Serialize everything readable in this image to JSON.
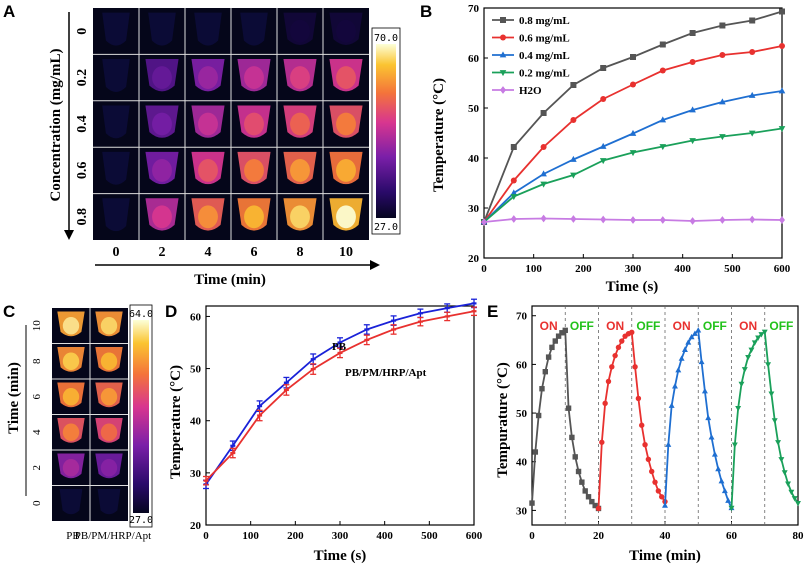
{
  "panels": {
    "A": {
      "letter": "A",
      "ylabel": "Concentration (mg/mL)",
      "xlabel": "Time (min)",
      "row_labels": [
        "0",
        "0.2",
        "0.4",
        "0.6",
        "0.8"
      ],
      "col_labels": [
        "0",
        "2",
        "4",
        "6",
        "8",
        "10"
      ],
      "colorbar_max": "70.0",
      "colorbar_min": "27.0",
      "intensity": [
        [
          0.02,
          0.04,
          0.05,
          0.05,
          0.06,
          0.06
        ],
        [
          0.02,
          0.3,
          0.42,
          0.52,
          0.58,
          0.64
        ],
        [
          0.02,
          0.34,
          0.52,
          0.62,
          0.68,
          0.74
        ],
        [
          0.02,
          0.4,
          0.64,
          0.74,
          0.8,
          0.84
        ],
        [
          0.02,
          0.55,
          0.78,
          0.86,
          0.92,
          1.0
        ]
      ]
    },
    "B": {
      "letter": "B",
      "chart_data": {
        "type": "line",
        "xlabel": "Time (s)",
        "ylabel": "Temperature (°C)",
        "xlim": [
          0,
          600
        ],
        "ylim": [
          20,
          70
        ],
        "xticks": [
          0,
          100,
          200,
          300,
          400,
          500,
          600
        ],
        "yticks": [
          20,
          30,
          40,
          50,
          60,
          70
        ],
        "x": [
          0,
          60,
          120,
          180,
          240,
          300,
          360,
          420,
          480,
          540,
          600
        ],
        "series": [
          {
            "name": "0.8 mg/mL",
            "color": "#555555",
            "marker": "square",
            "values": [
              27.2,
              42.2,
              49.0,
              54.6,
              58.0,
              60.2,
              62.7,
              65.0,
              66.5,
              67.5,
              69.3
            ]
          },
          {
            "name": "0.6 mg/mL",
            "color": "#e8312f",
            "marker": "circle",
            "values": [
              27.2,
              35.5,
              42.2,
              47.6,
              51.8,
              54.7,
              57.5,
              59.2,
              60.6,
              61.2,
              62.4
            ]
          },
          {
            "name": "0.4 mg/mL",
            "color": "#1f6fd1",
            "marker": "triangle-up",
            "values": [
              27.2,
              33.0,
              36.8,
              39.7,
              42.3,
              44.9,
              47.6,
              49.6,
              51.2,
              52.5,
              53.4
            ]
          },
          {
            "name": "0.2 mg/mL",
            "color": "#1aa05a",
            "marker": "triangle-down",
            "values": [
              27.2,
              32.3,
              34.8,
              36.6,
              39.5,
              41.1,
              42.3,
              43.5,
              44.3,
              45.0,
              45.9
            ]
          },
          {
            "name": "H2O",
            "color": "#c77be3",
            "marker": "diamond",
            "values": [
              27.2,
              27.8,
              27.9,
              27.8,
              27.7,
              27.6,
              27.6,
              27.4,
              27.6,
              27.7,
              27.6
            ]
          }
        ]
      }
    },
    "C": {
      "letter": "C",
      "ylabel": "Time (min)",
      "row_labels": [
        "10",
        "8",
        "6",
        "4",
        "2",
        "0"
      ],
      "col_labels": [
        "PB",
        "PB/PM/HRP/Apt"
      ],
      "colorbar_max": "64.0",
      "colorbar_min": "27.0",
      "intensity": [
        [
          0.95,
          0.92
        ],
        [
          0.9,
          0.86
        ],
        [
          0.85,
          0.8
        ],
        [
          0.75,
          0.7
        ],
        [
          0.45,
          0.38
        ],
        [
          0.02,
          0.02
        ]
      ]
    },
    "D": {
      "letter": "D",
      "chart_data": {
        "type": "line",
        "xlabel": "Time (s)",
        "ylabel": "Temperature (°C)",
        "xlim": [
          0,
          600
        ],
        "ylim": [
          20,
          62
        ],
        "xticks": [
          0,
          100,
          200,
          300,
          400,
          500,
          600
        ],
        "yticks": [
          20,
          30,
          40,
          50,
          60
        ],
        "x": [
          0,
          60,
          120,
          180,
          240,
          300,
          360,
          420,
          480,
          540,
          600
        ],
        "series": [
          {
            "name": "PB",
            "color": "#1a22d8",
            "values": [
              27.8,
              35.2,
              42.8,
              47.3,
              51.8,
              55.0,
              57.5,
              59.2,
              60.6,
              61.6,
              62.5
            ],
            "errors": [
              0.8,
              0.9,
              1.0,
              1.0,
              1.0,
              0.9,
              0.9,
              0.9,
              0.8,
              0.8,
              0.8
            ]
          },
          {
            "name": "PB/PM/HRP/Apt",
            "color": "#e8312f",
            "values": [
              28.5,
              33.8,
              41.0,
              45.9,
              49.9,
              53.0,
              55.5,
              57.5,
              59.0,
              60.0,
              61.0
            ],
            "errors": [
              0.8,
              0.9,
              1.0,
              1.0,
              1.0,
              0.9,
              0.9,
              0.9,
              0.8,
              0.8,
              0.8
            ]
          }
        ]
      }
    },
    "E": {
      "letter": "E",
      "on_label": "ON",
      "off_label": "OFF",
      "chart_data": {
        "type": "line",
        "xlabel": "Time (min)",
        "ylabel": "Tempurature (°C)",
        "xlim": [
          0,
          80
        ],
        "ylim": [
          27,
          72
        ],
        "xticks": [
          0,
          20,
          40,
          60,
          80
        ],
        "yticks": [
          30,
          40,
          50,
          60,
          70
        ],
        "dividers": [
          10,
          20,
          30,
          40,
          50,
          60,
          70
        ],
        "cycles": [
          {
            "color": "#555555",
            "marker": "square",
            "start": 0,
            "heat": [
              31.5,
              42.0,
              49.5,
              55.0,
              58.5,
              61.5,
              63.5,
              64.8,
              65.8,
              66.5,
              67.0
            ],
            "cool": [
              67.0,
              51.0,
              45.0,
              41.0,
              38.0,
              35.8,
              34.0,
              32.8,
              31.8,
              31.0,
              30.4
            ]
          },
          {
            "color": "#e8312f",
            "marker": "circle",
            "start": 20,
            "heat": [
              30.4,
              44.0,
              52.0,
              56.5,
              59.5,
              61.8,
              63.5,
              64.8,
              65.8,
              66.3,
              66.6
            ],
            "cool": [
              66.6,
              59.5,
              53.0,
              47.5,
              43.5,
              40.5,
              38.0,
              35.8,
              34.0,
              32.8,
              31.8
            ]
          },
          {
            "color": "#1f6fd1",
            "marker": "triangle-up",
            "start": 40,
            "heat": [
              31.0,
              43.5,
              51.5,
              55.5,
              58.8,
              61.2,
              63.0,
              64.5,
              65.6,
              66.3,
              67.0
            ],
            "cool": [
              67.0,
              60.5,
              54.5,
              49.0,
              45.0,
              41.5,
              38.5,
              36.0,
              34.0,
              32.0,
              30.5
            ]
          },
          {
            "color": "#1aa05a",
            "marker": "triangle-down",
            "start": 60,
            "heat": [
              30.5,
              43.5,
              51.0,
              56.0,
              59.0,
              61.5,
              63.0,
              64.5,
              65.5,
              66.2,
              66.7
            ],
            "cool": [
              66.7,
              60.0,
              54.0,
              48.5,
              44.0,
              40.5,
              37.8,
              35.5,
              33.8,
              32.5,
              31.5
            ]
          }
        ]
      }
    }
  }
}
